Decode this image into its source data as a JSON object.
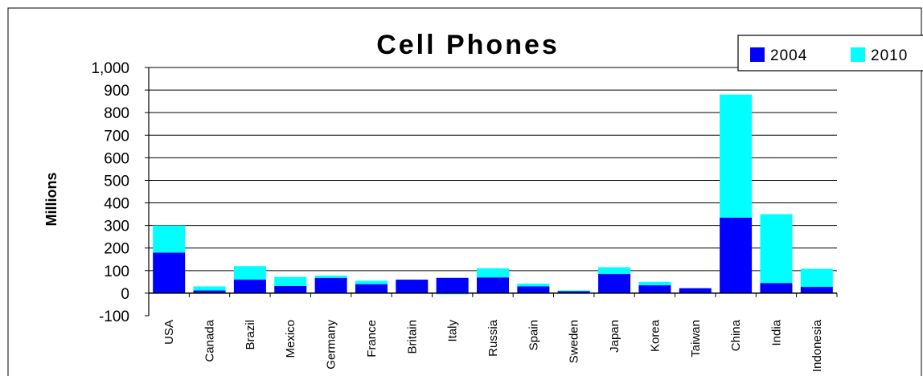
{
  "chart_data": {
    "type": "bar",
    "stacked": true,
    "title": "Cell Phones",
    "xlabel": "",
    "ylabel": "Millions",
    "ylim": [
      -100,
      1000
    ],
    "yticks": [
      -100,
      0,
      100,
      200,
      300,
      400,
      500,
      600,
      700,
      800,
      900,
      1000
    ],
    "ytick_labels": [
      "-100",
      "0",
      "100",
      "200",
      "300",
      "400",
      "500",
      "600",
      "700",
      "800",
      "900",
      "1,000"
    ],
    "grid": true,
    "legend": "top-right",
    "categories": [
      "USA",
      "Canada",
      "Brazil",
      "Mexico",
      "Germany",
      "France",
      "Britain",
      "Italy",
      "Russia",
      "Spain",
      "Sweden",
      "Japan",
      "Korea",
      "Taiwan",
      "China",
      "India",
      "Indonesia"
    ],
    "series": [
      {
        "name": "2004",
        "color": "#0000ff",
        "values": [
          180,
          12,
          60,
          32,
          68,
          40,
          60,
          68,
          70,
          30,
          10,
          85,
          35,
          22,
          335,
          45,
          28
        ]
      },
      {
        "name": "2010",
        "color": "#00ffff",
        "values": [
          120,
          18,
          60,
          40,
          10,
          15,
          0,
          -5,
          40,
          12,
          2,
          30,
          15,
          0,
          545,
          305,
          80
        ]
      }
    ]
  }
}
